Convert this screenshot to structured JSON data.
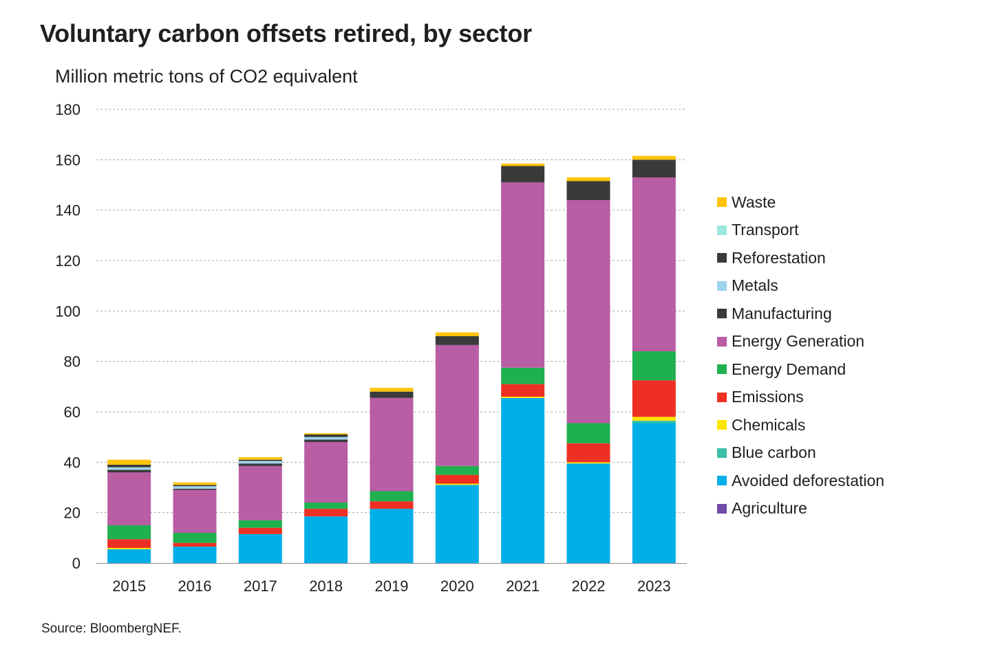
{
  "header": {
    "title": "Voluntary carbon offsets retired, by sector",
    "subtitle": "Million metric tons of CO2 equivalent"
  },
  "footer": {
    "source": "Source: BloombergNEF."
  },
  "chart_data": {
    "type": "bar",
    "stacked": true,
    "title": "Voluntary carbon offsets retired, by sector",
    "ylabel": "Million metric tons of CO2 equivalent",
    "xlabel": "",
    "ylim": [
      0,
      180
    ],
    "yticks": [
      0,
      20,
      40,
      60,
      80,
      100,
      120,
      140,
      160,
      180
    ],
    "grid": "horizontal dashed",
    "legend_position": "right",
    "categories": [
      "2015",
      "2016",
      "2017",
      "2018",
      "2019",
      "2020",
      "2021",
      "2022",
      "2023"
    ],
    "series": [
      {
        "name": "Agriculture",
        "color": "#6f4aa8",
        "values": [
          0,
          0,
          0,
          0,
          0,
          0,
          0,
          0,
          0
        ]
      },
      {
        "name": "Avoided deforestation",
        "color": "#00aee8",
        "values": [
          5.5,
          6.5,
          11.5,
          18.5,
          21.5,
          31,
          65.5,
          39.5,
          55.5
        ]
      },
      {
        "name": "Blue carbon",
        "color": "#3cbfa8",
        "values": [
          0,
          0,
          0,
          0,
          0,
          0,
          0,
          0,
          1
        ]
      },
      {
        "name": "Chemicals",
        "color": "#ffe600",
        "values": [
          0.5,
          0,
          0,
          0,
          0,
          0.5,
          0.5,
          0.5,
          1.5
        ]
      },
      {
        "name": "Emissions",
        "color": "#ee3024",
        "values": [
          3.5,
          1.5,
          2.5,
          3,
          3,
          3.5,
          5,
          7.5,
          14.5
        ]
      },
      {
        "name": "Energy Demand",
        "color": "#1fb04f",
        "values": [
          5.5,
          4,
          3,
          2.5,
          4,
          3.5,
          6.5,
          8,
          11.5
        ]
      },
      {
        "name": "Energy Generation",
        "color": "#b95da5",
        "values": [
          21,
          17,
          21.5,
          24,
          37,
          48,
          73.5,
          88.5,
          69
        ]
      },
      {
        "name": "Manufacturing",
        "color": "#3a3a3a",
        "values": [
          1,
          0.5,
          1,
          1,
          0.5,
          0,
          0,
          0,
          0
        ]
      },
      {
        "name": "Metals",
        "color": "#9fd3ee",
        "values": [
          1,
          1,
          1,
          1,
          0,
          0,
          0,
          0,
          0
        ]
      },
      {
        "name": "Reforestation",
        "color": "#3a3a3a",
        "values": [
          1,
          0.5,
          0.5,
          1,
          2,
          3.5,
          6.5,
          7.5,
          7
        ]
      },
      {
        "name": "Transport",
        "color": "#9de6df",
        "values": [
          0,
          0,
          0,
          0,
          0,
          0,
          0,
          0,
          0
        ]
      },
      {
        "name": "Waste",
        "color": "#ffc30a",
        "values": [
          2,
          1,
          1,
          0.5,
          1.5,
          1.5,
          1,
          1.5,
          1.5
        ]
      }
    ]
  }
}
